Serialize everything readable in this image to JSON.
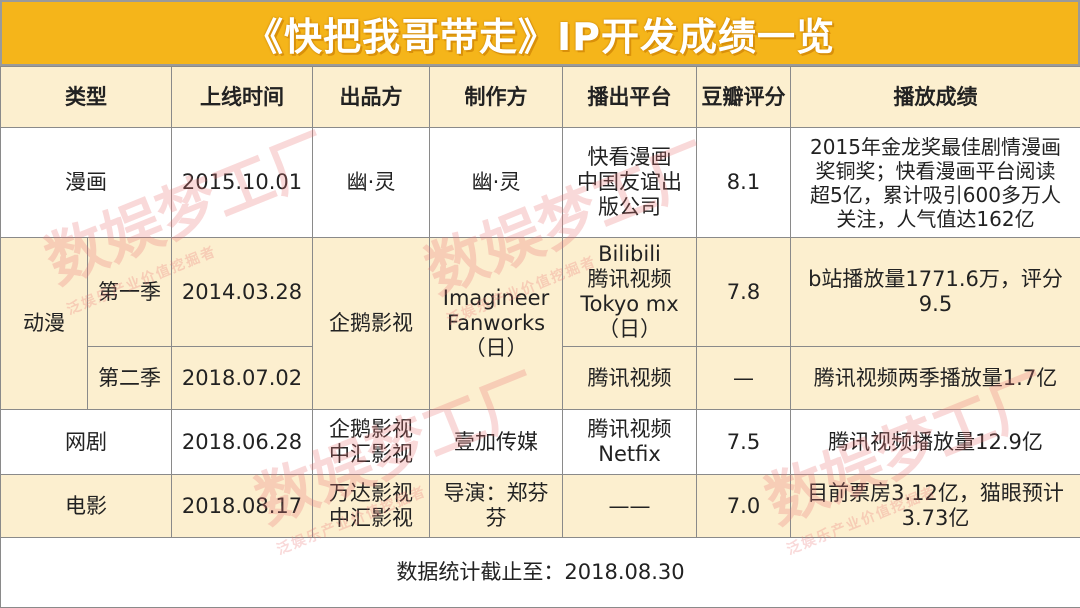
{
  "title": "《快把我哥带走》IP开发成绩一览",
  "headers": [
    "类型",
    "上线时间",
    "出品方",
    "制作方",
    "播出平台",
    "豆瓣评分",
    "播放成绩"
  ],
  "rows": {
    "manhua": {
      "type": "漫画",
      "date": "2015.10.01",
      "producer": "幽·灵",
      "maker": "幽·灵",
      "platform": [
        "快看漫画",
        "中国友谊出",
        "版公司"
      ],
      "score": "8.1",
      "result": [
        "2015年金龙奖最佳剧情漫画",
        "奖铜奖；快看漫画平台阅读",
        "超5亿，累计吸引600多万人",
        "关注，人气值达162亿"
      ]
    },
    "dongman": {
      "type": "动漫",
      "producer": "企鹅影视",
      "maker": [
        "Imagineer",
        "Fanworks",
        "（日）"
      ],
      "season1": {
        "label": "第一季",
        "date": "2014.03.28",
        "platform": [
          "Bilibili",
          "腾讯视频",
          "Tokyo mx",
          "（日）"
        ],
        "score": "7.8",
        "result": [
          "b站播放量1771.6万，评分",
          "9.5"
        ]
      },
      "season2": {
        "label": "第二季",
        "date": "2018.07.02",
        "platform": "腾讯视频",
        "score": "—",
        "result": "腾讯视频两季播放量1.7亿"
      }
    },
    "wangju": {
      "type": "网剧",
      "date": "2018.06.28",
      "producer": [
        "企鹅影视",
        "中汇影视"
      ],
      "maker": "壹加传媒",
      "platform": [
        "腾讯视频",
        "Netfix"
      ],
      "score": "7.5",
      "result": "腾讯视频播放量12.9亿"
    },
    "dianying": {
      "type": "电影",
      "date": "2018.08.17",
      "producer": [
        "万达影视",
        "中汇影视"
      ],
      "maker": [
        "导演：郑芬",
        "芬"
      ],
      "platform": "——",
      "score": "7.0",
      "result": [
        "目前票房3.12亿，猫眼预计",
        "3.73亿"
      ]
    }
  },
  "footer": "数据统计截止至：2018.08.30",
  "watermark": {
    "main": "数娱梦工厂",
    "sub": "泛娱乐产业价值挖掘者"
  },
  "colors": {
    "title_bg": "#f5b51a",
    "row_yellow": "#fcefcf",
    "border": "#8a8a8a"
  }
}
